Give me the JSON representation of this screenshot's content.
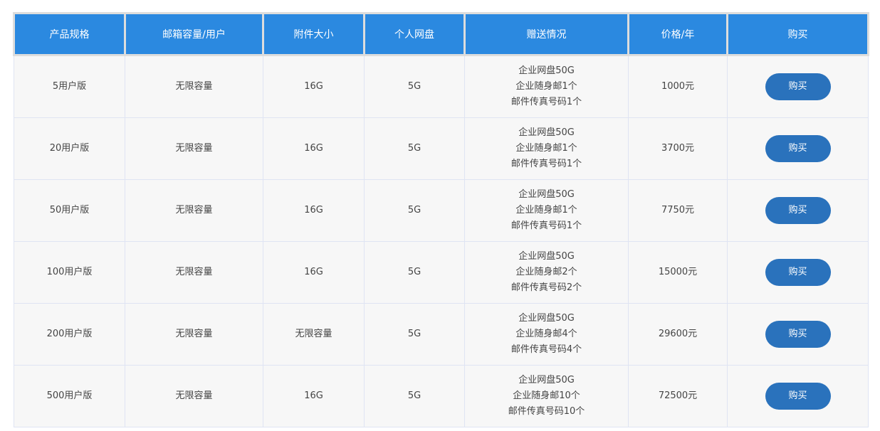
{
  "table": {
    "headers": [
      "产品规格",
      "邮箱容量/用户",
      "附件大小",
      "个人网盘",
      "赠送情况",
      "价格/年",
      "购买"
    ],
    "rows": [
      {
        "spec": "5用户版",
        "capacity": "无限容量",
        "attachment": "16G",
        "disk": "5G",
        "gifts": [
          "企业网盘50G",
          "企业随身邮1个",
          "邮件传真号码1个"
        ],
        "price": "1000元",
        "buy": "购买"
      },
      {
        "spec": "20用户版",
        "capacity": "无限容量",
        "attachment": "16G",
        "disk": "5G",
        "gifts": [
          "企业网盘50G",
          "企业随身邮1个",
          "邮件传真号码1个"
        ],
        "price": "3700元",
        "buy": "购买"
      },
      {
        "spec": "50用户版",
        "capacity": "无限容量",
        "attachment": "16G",
        "disk": "5G",
        "gifts": [
          "企业网盘50G",
          "企业随身邮1个",
          "邮件传真号码1个"
        ],
        "price": "7750元",
        "buy": "购买"
      },
      {
        "spec": "100用户版",
        "capacity": "无限容量",
        "attachment": "16G",
        "disk": "5G",
        "gifts": [
          "企业网盘50G",
          "企业随身邮2个",
          "邮件传真号码2个"
        ],
        "price": "15000元",
        "buy": "购买"
      },
      {
        "spec": "200用户版",
        "capacity": "无限容量",
        "attachment": "无限容量",
        "disk": "5G",
        "gifts": [
          "企业网盘50G",
          "企业随身邮4个",
          "邮件传真号码4个"
        ],
        "price": "29600元",
        "buy": "购买"
      },
      {
        "spec": "500用户版",
        "capacity": "无限容量",
        "attachment": "16G",
        "disk": "5G",
        "gifts": [
          "企业网盘50G",
          "企业随身邮10个",
          "邮件传真号码10个"
        ],
        "price": "72500元",
        "buy": "购买"
      }
    ]
  },
  "colors": {
    "header_bg": "#2b89e0",
    "button_bg": "#2a72bc",
    "row_bg": "#f7f7f7"
  }
}
